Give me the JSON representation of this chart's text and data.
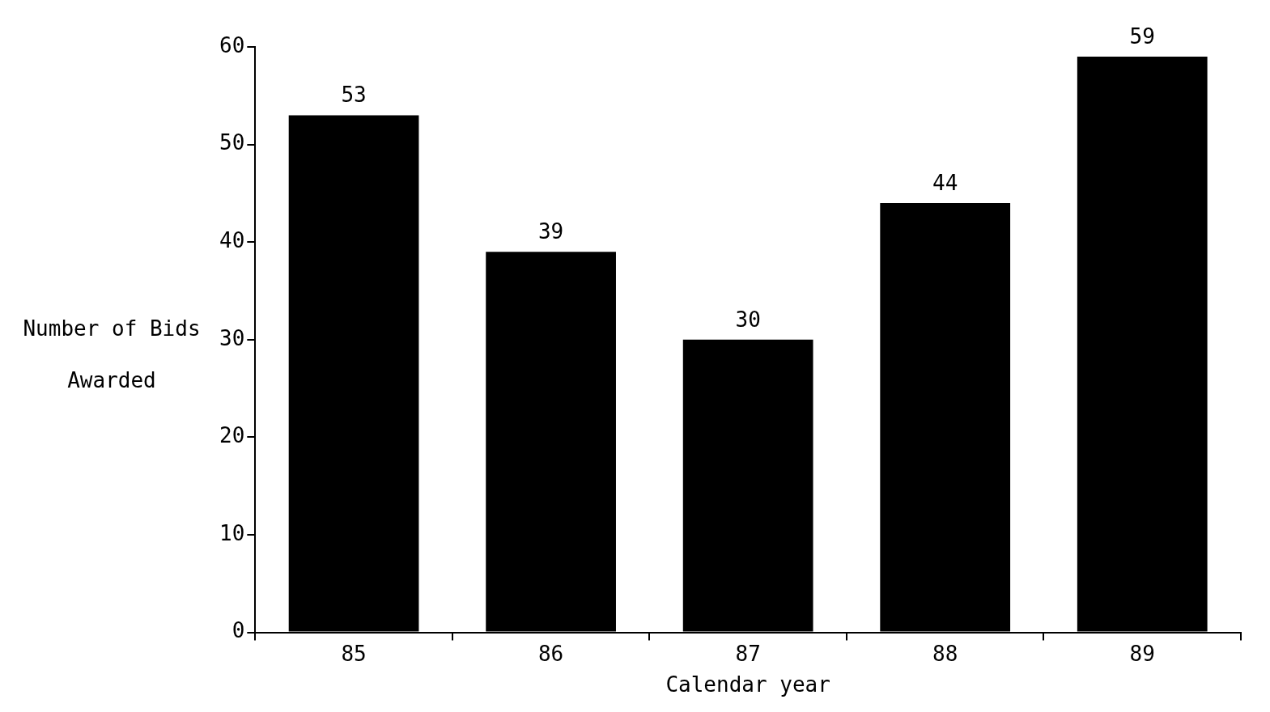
{
  "chart_data": {
    "type": "bar",
    "xlabel": "Calendar year",
    "ylabel": "Number of Bids Awarded",
    "categories": [
      "85",
      "86",
      "87",
      "88",
      "89"
    ],
    "values": [
      53,
      39,
      30,
      44,
      59
    ],
    "color": "#000000",
    "ylim": [
      0,
      60
    ],
    "yticks": [
      0,
      10,
      20,
      30,
      40,
      50,
      60
    ],
    "grid": false,
    "legend": false,
    "data_labels": true
  }
}
